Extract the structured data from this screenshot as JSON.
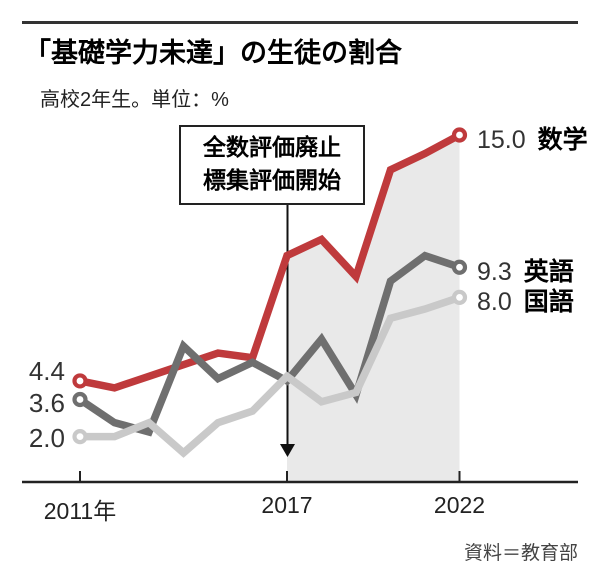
{
  "header": {
    "title": "「基礎学力未達」の生徒の割合",
    "subtitle": "高校2年生。単位：%"
  },
  "annotation": {
    "line1": "全数評価廃止",
    "line2": "標集評価開始"
  },
  "source": "資料＝教育部",
  "colors": {
    "math": "#bf3a3c",
    "english": "#6f6f6f",
    "kokugo": "#c9c9c9",
    "shade": "#e9e9e9",
    "axis": "#222222"
  },
  "chart_data": {
    "type": "line",
    "title": "「基礎学力未達」の生徒の割合",
    "subtitle": "高校2年生。単位：%",
    "unit": "%",
    "x": [
      2011,
      2012,
      2013,
      2014,
      2015,
      2016,
      2017,
      2018,
      2019,
      2020,
      2021,
      2022
    ],
    "x_ticks": [
      {
        "year": 2011,
        "label": "2011年"
      },
      {
        "year": 2017,
        "label": "2017"
      },
      {
        "year": 2022,
        "label": "2022"
      }
    ],
    "ylim": [
      0,
      16
    ],
    "grid": false,
    "legend_position": "end-of-line",
    "series": [
      {
        "id": "math",
        "name": "数学",
        "color": "#bf3a3c",
        "start_label": "4.4",
        "end_label": "15.0",
        "values": [
          4.4,
          4.1,
          4.6,
          5.1,
          5.6,
          5.4,
          9.8,
          10.5,
          8.9,
          13.5,
          14.2,
          15.0
        ]
      },
      {
        "id": "english",
        "name": "英語",
        "color": "#6f6f6f",
        "start_label": "3.6",
        "end_label": "9.3",
        "values": [
          3.6,
          2.6,
          2.2,
          5.9,
          4.5,
          5.2,
          4.4,
          6.2,
          3.8,
          8.7,
          9.8,
          9.3
        ]
      },
      {
        "id": "kokugo",
        "name": "国語",
        "color": "#c9c9c9",
        "start_label": "2.0",
        "end_label": "8.0",
        "values": [
          2.0,
          2.0,
          2.6,
          1.3,
          2.6,
          3.1,
          4.6,
          3.5,
          3.9,
          7.1,
          7.5,
          8.0
        ]
      }
    ],
    "shaded_region": {
      "from_year": 2017,
      "to_year": 2022,
      "bounded_by_series": "数学",
      "color": "#e9e9e9"
    },
    "annotation": {
      "text_lines": [
        "全数評価廃止",
        "標集評価開始"
      ],
      "arrow_year": 2017
    }
  }
}
